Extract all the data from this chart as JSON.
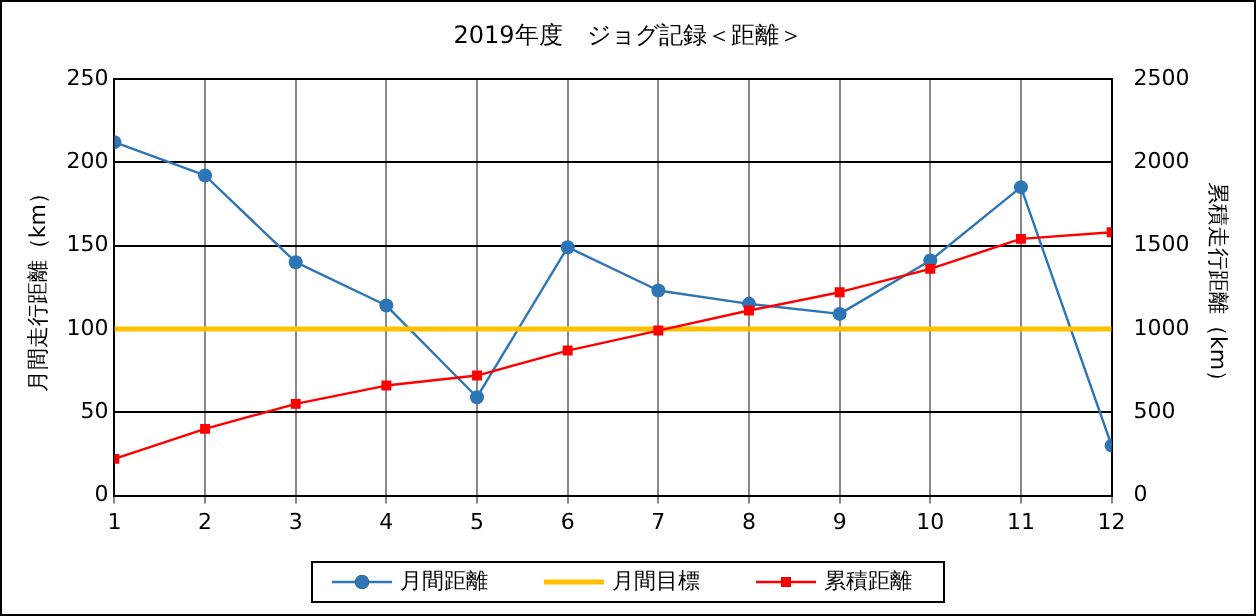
{
  "chart_data": {
    "type": "line",
    "title": "2019年度　ジョグ記録＜距離＞",
    "ylabel": "月間走行距離（km）",
    "y2label": "累積走行距離（km）",
    "x": [
      1,
      2,
      3,
      4,
      5,
      6,
      7,
      8,
      9,
      10,
      11,
      12
    ],
    "xlim": [
      1,
      12
    ],
    "xticks": [
      1,
      2,
      3,
      4,
      5,
      6,
      7,
      8,
      9,
      10,
      11,
      12
    ],
    "ylim": [
      0,
      250
    ],
    "yticks": [
      0,
      50,
      100,
      150,
      200,
      250
    ],
    "y2lim": [
      0,
      2500
    ],
    "y2ticks": [
      0,
      500,
      1000,
      1500,
      2000,
      2500
    ],
    "grid": true,
    "legend": "bottom",
    "series": [
      {
        "name": "月間距離",
        "color": "#2e75b6",
        "marker": "circle",
        "values": [
          212,
          192,
          140,
          114,
          59,
          149,
          123,
          115,
          109,
          141,
          185,
          30
        ]
      },
      {
        "name": "月間目標",
        "color": "#ffc000",
        "marker": "none",
        "values": [
          100,
          100,
          100,
          100,
          100,
          100,
          100,
          100,
          100,
          100,
          100,
          100
        ]
      },
      {
        "name": "累積距離",
        "color": "#ff0000",
        "marker": "square",
        "axis": "y2",
        "values": [
          220,
          400,
          550,
          660,
          720,
          870,
          990,
          1110,
          1220,
          1360,
          1540,
          1580
        ]
      }
    ]
  }
}
